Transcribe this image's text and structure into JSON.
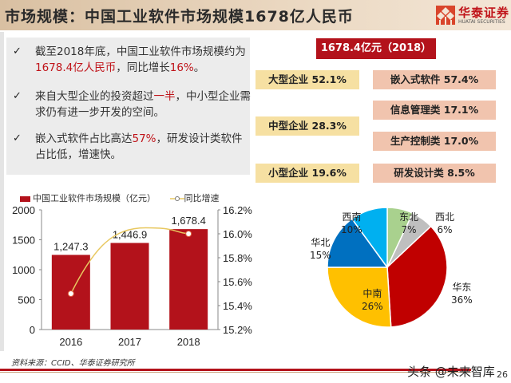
{
  "header": {
    "title": "市场规模：中国工业软件市场规模1678亿人民币",
    "logo_cn": "华泰证券",
    "logo_en": "HUATAI SECURITIES"
  },
  "points": [
    {
      "icon": "check-icon",
      "parts": [
        "截至2018年底，中国工业软件市场规模约为",
        "1678.4亿人民币",
        "，同比增长",
        "16%",
        "。"
      ]
    },
    {
      "icon": "check-icon",
      "parts": [
        "来自大型企业的投资超过",
        "一半",
        "，中小型企业需求仍有进一步开发的空间。"
      ]
    },
    {
      "icon": "check-icon",
      "parts": [
        "嵌入式软件占比高达",
        "57%",
        "，研发设计类软件占比低，增速快。"
      ]
    }
  ],
  "summary": {
    "total_label": "1678.4亿元（2018）",
    "enterprise": [
      {
        "label": "大型企业 52.1%"
      },
      {
        "label": "中型企业 28.3%"
      },
      {
        "label": "小型企业 19.6%"
      }
    ],
    "software": [
      {
        "label": "嵌入式软件 57.4%"
      },
      {
        "label": "信息管理类 17.1%"
      },
      {
        "label": "生产控制类 17.0%"
      },
      {
        "label": "研发设计类 8.5%"
      }
    ]
  },
  "chart_data": [
    {
      "type": "bar",
      "title": "",
      "categories": [
        "2016",
        "2017",
        "2018"
      ],
      "series": [
        {
          "name": "中国工业软件市场规模（亿元）",
          "type": "bar",
          "axis": "left",
          "values": [
            1247.3,
            1446.9,
            1678.4
          ],
          "labels": [
            "1,247.3",
            "1,446.9",
            "1,678.4"
          ],
          "color": "#b3121b"
        },
        {
          "name": "同比增速",
          "type": "line",
          "axis": "right",
          "values": [
            15.5,
            null,
            16.0
          ],
          "color": "#e8c860"
        }
      ],
      "y_left": {
        "range": [
          0,
          2000
        ],
        "ticks": [
          "0",
          "500",
          "1000",
          "1500",
          "2000"
        ]
      },
      "y_right": {
        "range": [
          15.2,
          16.2
        ],
        "ticks": [
          "15.2%",
          "15.4%",
          "15.6%",
          "15.8%",
          "16.0%",
          "16.2%"
        ]
      },
      "legend": "top",
      "grid": false
    },
    {
      "type": "pie",
      "slices": [
        {
          "name": "东北",
          "value": 7,
          "label": "7%",
          "color": "#a9d18e"
        },
        {
          "name": "西北",
          "value": 6,
          "label": "6%",
          "color": "#bfbfbf"
        },
        {
          "name": "华东",
          "value": 36,
          "label": "36%",
          "color": "#c00000"
        },
        {
          "name": "中南",
          "value": 26,
          "label": "26%",
          "color": "#ffc000"
        },
        {
          "name": "华北",
          "value": 15,
          "label": "15%",
          "color": "#0070c0"
        },
        {
          "name": "西南",
          "value": 10,
          "label": "10%",
          "color": "#00b0f0"
        }
      ]
    }
  ],
  "footer": {
    "source": "资料来源：CCID、华泰证券研究所",
    "watermark": "头条 @未来智库",
    "page_number": "26"
  }
}
